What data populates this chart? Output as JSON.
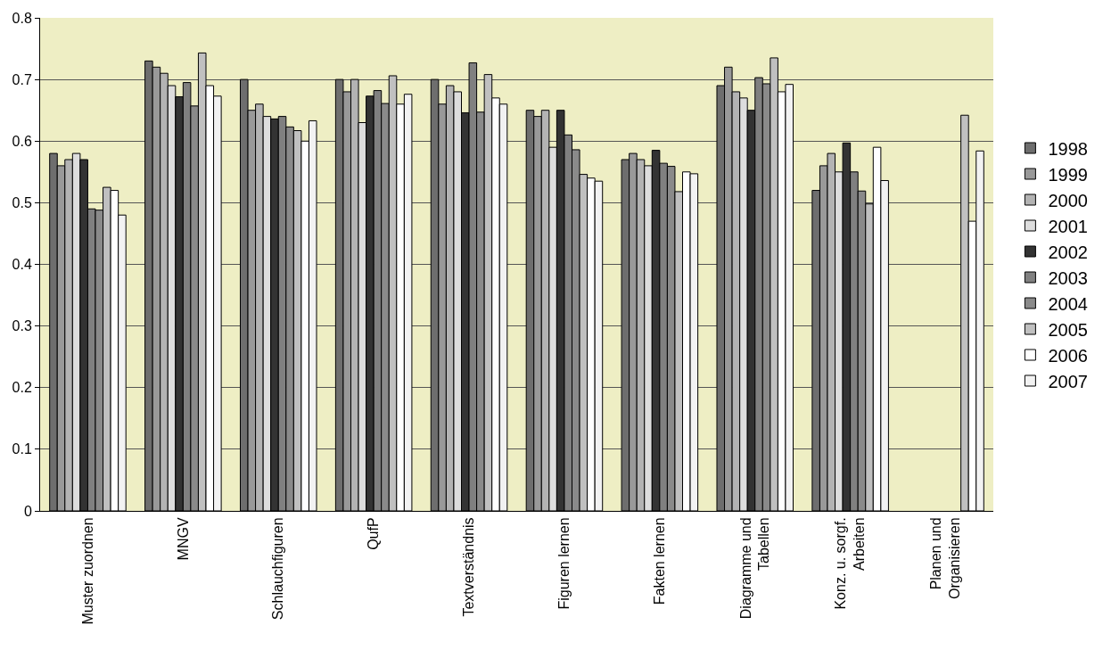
{
  "chart_data": {
    "type": "bar",
    "categories": [
      "Muster zuordnen",
      "MNGV",
      "Schlauchfiguren",
      "QufP",
      "Textverständnis",
      "Figuren lernen",
      "Fakten lernen",
      "Diagramme und\nTabellen",
      "Konz. u. sorgf.\nArbeiten",
      "Planen und\nOrganisieren"
    ],
    "series": [
      {
        "name": "1998",
        "color": "#6e6e6e",
        "values": [
          0.58,
          0.73,
          0.7,
          0.7,
          0.7,
          0.65,
          0.57,
          0.69,
          0.52,
          null
        ]
      },
      {
        "name": "1999",
        "color": "#999999",
        "values": [
          0.56,
          0.72,
          0.65,
          0.68,
          0.66,
          0.64,
          0.58,
          0.72,
          0.56,
          null
        ]
      },
      {
        "name": "2000",
        "color": "#b3b3b3",
        "values": [
          0.57,
          0.71,
          0.66,
          0.7,
          0.69,
          0.65,
          0.57,
          0.68,
          0.58,
          null
        ]
      },
      {
        "name": "2001",
        "color": "#dddddd",
        "values": [
          0.58,
          0.69,
          0.64,
          0.63,
          0.68,
          0.59,
          0.56,
          0.67,
          0.55,
          null
        ]
      },
      {
        "name": "2002",
        "color": "#333333",
        "values": [
          0.57,
          0.672,
          0.636,
          0.673,
          0.646,
          0.65,
          0.585,
          0.65,
          0.597,
          null
        ]
      },
      {
        "name": "2003",
        "color": "#808080",
        "values": [
          0.49,
          0.695,
          0.64,
          0.682,
          0.727,
          0.61,
          0.564,
          0.703,
          0.55,
          null
        ]
      },
      {
        "name": "2004",
        "color": "#8a8a8a",
        "values": [
          0.488,
          0.657,
          0.623,
          0.661,
          0.647,
          0.586,
          0.559,
          0.693,
          0.519,
          null
        ]
      },
      {
        "name": "2005",
        "color": "#c0c0c0",
        "values": [
          0.525,
          0.743,
          0.617,
          0.706,
          0.708,
          0.546,
          0.518,
          0.735,
          0.498,
          0.642
        ]
      },
      {
        "name": "2006",
        "color": "#ffffff",
        "values": [
          0.52,
          0.69,
          0.6,
          0.66,
          0.67,
          0.54,
          0.55,
          0.68,
          0.59,
          0.47
        ]
      },
      {
        "name": "2007",
        "color": "#f2f2f2",
        "values": [
          0.48,
          0.673,
          0.633,
          0.676,
          0.66,
          0.535,
          0.547,
          0.692,
          0.536,
          0.584
        ]
      }
    ],
    "ylim": [
      0,
      0.8
    ],
    "yticks": [
      {
        "value": 0,
        "label": "0"
      },
      0.1,
      0.2,
      0.3,
      0.4,
      0.5,
      0.6,
      0.7,
      0.8
    ],
    "grid": "y",
    "legend": "right"
  }
}
